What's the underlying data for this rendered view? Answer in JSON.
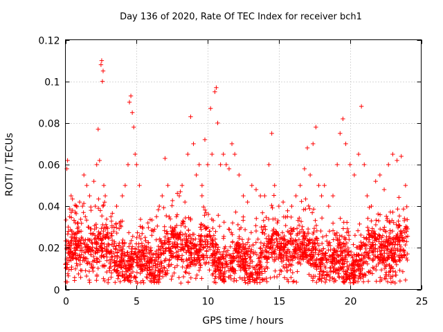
{
  "chart_data": {
    "type": "scatter",
    "title": "Day 136 of 2020, Rate Of TEC Index for receiver bch1",
    "xlabel": "GPS time / hours",
    "ylabel": "ROTI / TECUs",
    "xlim": [
      0,
      25
    ],
    "ylim": [
      0,
      0.12
    ],
    "xticks": [
      "0",
      "5",
      "10",
      "15",
      "20",
      "25"
    ],
    "yticks": [
      "0",
      "0.02",
      "0.04",
      "0.06",
      "0.08",
      "0.1",
      "0.12"
    ],
    "grid": true,
    "marker": "+",
    "color": "#ff0000",
    "series": [
      {
        "points": [
          [
            0.0,
            0.012
          ],
          [
            0.1,
            0.058
          ],
          [
            0.15,
            0.062
          ],
          [
            0.2,
            0.03
          ],
          [
            0.25,
            0.022
          ],
          [
            0.3,
            0.035
          ],
          [
            0.35,
            0.018
          ],
          [
            0.4,
            0.045
          ],
          [
            0.45,
            0.028
          ],
          [
            0.5,
            0.038
          ],
          [
            0.6,
            0.025
          ],
          [
            0.7,
            0.032
          ],
          [
            0.8,
            0.02
          ],
          [
            0.9,
            0.03
          ],
          [
            1.0,
            0.042
          ],
          [
            1.1,
            0.028
          ],
          [
            1.2,
            0.04
          ],
          [
            1.3,
            0.055
          ],
          [
            1.4,
            0.035
          ],
          [
            1.5,
            0.05
          ],
          [
            1.6,
            0.03
          ],
          [
            1.7,
            0.045
          ],
          [
            1.8,
            0.038
          ],
          [
            1.9,
            0.022
          ],
          [
            2.0,
            0.052
          ],
          [
            2.1,
            0.04
          ],
          [
            2.2,
            0.06
          ],
          [
            2.3,
            0.077
          ],
          [
            2.4,
            0.062
          ],
          [
            2.5,
            0.108
          ],
          [
            2.55,
            0.11
          ],
          [
            2.6,
            0.1
          ],
          [
            2.65,
            0.105
          ],
          [
            2.7,
            0.05
          ],
          [
            2.8,
            0.045
          ],
          [
            2.9,
            0.03
          ],
          [
            3.0,
            0.025
          ],
          [
            3.2,
            0.035
          ],
          [
            3.4,
            0.028
          ],
          [
            3.6,
            0.04
          ],
          [
            3.8,
            0.032
          ],
          [
            4.0,
            0.045
          ],
          [
            4.2,
            0.05
          ],
          [
            4.4,
            0.06
          ],
          [
            4.5,
            0.09
          ],
          [
            4.6,
            0.093
          ],
          [
            4.7,
            0.085
          ],
          [
            4.8,
            0.078
          ],
          [
            4.9,
            0.065
          ],
          [
            5.0,
            0.06
          ],
          [
            5.2,
            0.05
          ],
          [
            5.4,
            0.03
          ],
          [
            5.6,
            0.025
          ],
          [
            5.8,
            0.032
          ],
          [
            6.0,
            0.02
          ],
          [
            6.2,
            0.028
          ],
          [
            6.4,
            0.035
          ],
          [
            6.6,
            0.04
          ],
          [
            6.8,
            0.045
          ],
          [
            7.0,
            0.063
          ],
          [
            7.2,
            0.05
          ],
          [
            7.4,
            0.03
          ],
          [
            7.6,
            0.028
          ],
          [
            7.8,
            0.035
          ],
          [
            8.0,
            0.045
          ],
          [
            8.2,
            0.05
          ],
          [
            8.4,
            0.042
          ],
          [
            8.6,
            0.065
          ],
          [
            8.8,
            0.083
          ],
          [
            9.0,
            0.07
          ],
          [
            9.2,
            0.055
          ],
          [
            9.4,
            0.06
          ],
          [
            9.6,
            0.05
          ],
          [
            9.8,
            0.072
          ],
          [
            10.0,
            0.06
          ],
          [
            10.2,
            0.087
          ],
          [
            10.3,
            0.065
          ],
          [
            10.5,
            0.095
          ],
          [
            10.6,
            0.097
          ],
          [
            10.7,
            0.08
          ],
          [
            10.9,
            0.06
          ],
          [
            11.1,
            0.065
          ],
          [
            11.3,
            0.06
          ],
          [
            11.5,
            0.058
          ],
          [
            11.7,
            0.07
          ],
          [
            11.9,
            0.065
          ],
          [
            12.2,
            0.055
          ],
          [
            12.5,
            0.045
          ],
          [
            12.8,
            0.042
          ],
          [
            13.1,
            0.05
          ],
          [
            13.4,
            0.048
          ],
          [
            13.7,
            0.045
          ],
          [
            14.0,
            0.045
          ],
          [
            14.3,
            0.06
          ],
          [
            14.5,
            0.075
          ],
          [
            14.7,
            0.05
          ],
          [
            15.0,
            0.04
          ],
          [
            15.3,
            0.042
          ],
          [
            15.6,
            0.035
          ],
          [
            15.9,
            0.04
          ],
          [
            16.2,
            0.045
          ],
          [
            16.5,
            0.05
          ],
          [
            16.8,
            0.058
          ],
          [
            17.0,
            0.068
          ],
          [
            17.2,
            0.055
          ],
          [
            17.4,
            0.07
          ],
          [
            17.6,
            0.078
          ],
          [
            17.8,
            0.05
          ],
          [
            18.0,
            0.045
          ],
          [
            18.2,
            0.05
          ],
          [
            18.5,
            0.04
          ],
          [
            18.8,
            0.045
          ],
          [
            19.1,
            0.06
          ],
          [
            19.3,
            0.075
          ],
          [
            19.5,
            0.082
          ],
          [
            19.7,
            0.07
          ],
          [
            20.0,
            0.06
          ],
          [
            20.3,
            0.055
          ],
          [
            20.6,
            0.065
          ],
          [
            20.8,
            0.088
          ],
          [
            21.0,
            0.06
          ],
          [
            21.2,
            0.045
          ],
          [
            21.5,
            0.04
          ],
          [
            21.8,
            0.052
          ],
          [
            22.1,
            0.055
          ],
          [
            22.4,
            0.048
          ],
          [
            22.7,
            0.06
          ],
          [
            23.0,
            0.065
          ],
          [
            23.3,
            0.062
          ],
          [
            23.6,
            0.064
          ],
          [
            23.9,
            0.05
          ],
          [
            24.0,
            0.03
          ]
        ]
      }
    ]
  }
}
